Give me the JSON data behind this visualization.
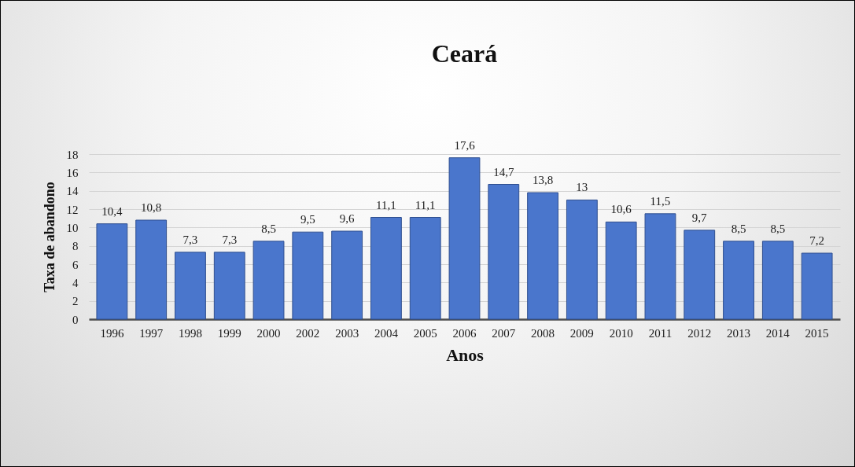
{
  "chart_data": {
    "type": "bar",
    "title": "Ceará",
    "xlabel": "Anos",
    "ylabel": "Taxa de abandono",
    "categories": [
      "1996",
      "1997",
      "1998",
      "1999",
      "2000",
      "2002",
      "2003",
      "2004",
      "2005",
      "2006",
      "2007",
      "2008",
      "2009",
      "2010",
      "2011",
      "2012",
      "2013",
      "2014",
      "2015"
    ],
    "values": [
      10.4,
      10.8,
      7.3,
      7.3,
      8.5,
      9.5,
      9.6,
      11.1,
      11.1,
      17.6,
      14.7,
      13.8,
      13,
      10.6,
      11.5,
      9.7,
      8.5,
      8.5,
      7.2
    ],
    "value_labels": [
      "10,4",
      "10,8",
      "7,3",
      "7,3",
      "8,5",
      "9,5",
      "9,6",
      "11,1",
      "11,1",
      "17,6",
      "14,7",
      "13,8",
      "13",
      "10,6",
      "11,5",
      "9,7",
      "8,5",
      "8,5",
      "7,2"
    ],
    "color": "#4a76cc",
    "ylim": [
      0,
      18
    ],
    "yticks": [
      0,
      2,
      4,
      6,
      8,
      10,
      12,
      14,
      16,
      18
    ],
    "grid": "y"
  }
}
